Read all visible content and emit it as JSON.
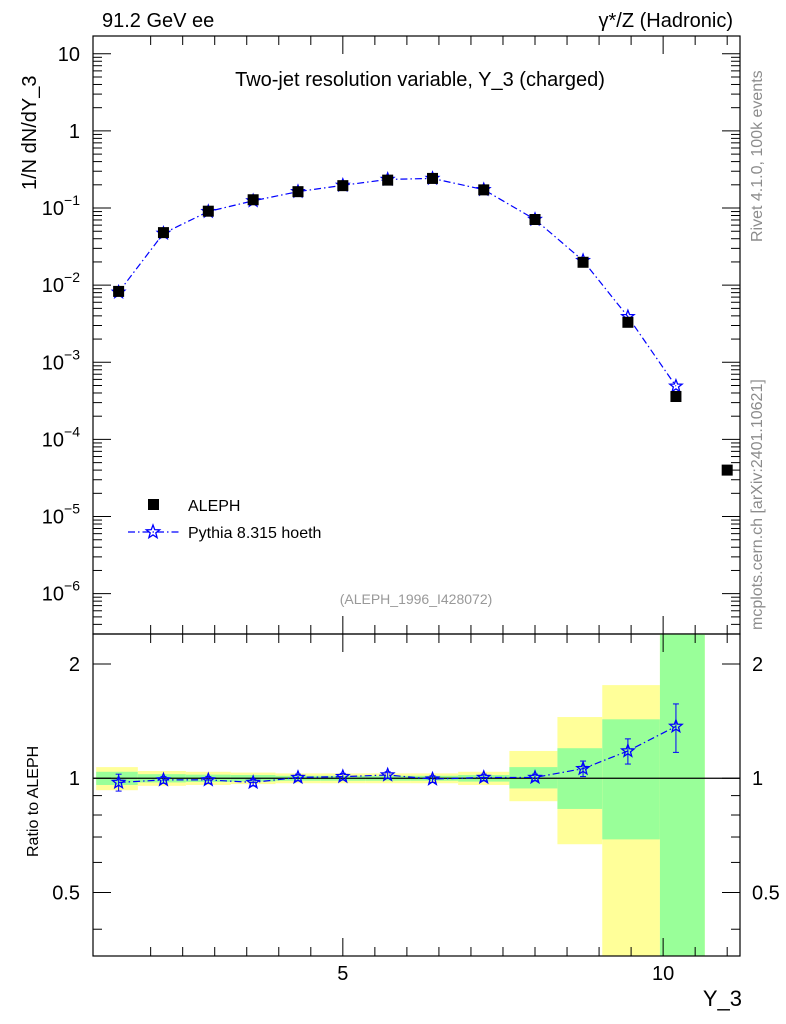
{
  "header": {
    "left": "91.2 GeV ee",
    "right": "γ*/Z (Hadronic)"
  },
  "side_labels": {
    "rivet": "Rivet 4.1.0,  100k events",
    "mcplots": "mcplots.cern.ch [arXiv:2401.10621]"
  },
  "colors": {
    "data": "#000000",
    "mc": "#0000ff",
    "band_green": "#99ff99",
    "band_yellow": "#ffff99",
    "analysis_label": "#999999"
  },
  "chart_data": [
    {
      "type": "scatter",
      "name": "main",
      "title": "Two-jet resolution variable, Y_3 (charged)",
      "analysis_id": "(ALEPH_1996_I428072)",
      "ylabel": "1/N  dN/dY_3",
      "xlabel": "Y_3",
      "yscale": "log",
      "xlim": [
        1.1,
        11.2
      ],
      "ylim": [
        3e-07,
        17
      ],
      "y_ticks": [
        {
          "value": 1e-06,
          "base": "10",
          "exp": "−6"
        },
        {
          "value": 1e-05,
          "base": "10",
          "exp": "−5"
        },
        {
          "value": 0.0001,
          "base": "10",
          "exp": "−4"
        },
        {
          "value": 0.001,
          "base": "10",
          "exp": "−3"
        },
        {
          "value": 0.01,
          "base": "10",
          "exp": "−2"
        },
        {
          "value": 0.1,
          "base": "10",
          "exp": "−1"
        },
        {
          "value": 1,
          "base": "1",
          "exp": ""
        },
        {
          "value": 10,
          "base": "10",
          "exp": ""
        }
      ],
      "legend": {
        "position": "bottom-left",
        "entries": [
          "ALEPH",
          "Pythia 8.315 hoeth"
        ]
      },
      "series": [
        {
          "name": "ALEPH",
          "style": "square-markers",
          "x": [
            1.5,
            2.2,
            2.9,
            3.6,
            4.3,
            5.0,
            5.7,
            6.4,
            7.2,
            8.0,
            8.75,
            9.45,
            10.2,
            11.0
          ],
          "y": [
            0.0083,
            0.048,
            0.091,
            0.128,
            0.163,
            0.195,
            0.23,
            0.242,
            0.172,
            0.071,
            0.0198,
            0.0033,
            0.00036,
            4e-05
          ]
        },
        {
          "name": "Pythia 8.315 hoeth",
          "style": "star-markers-dashdot-line",
          "x": [
            1.5,
            2.2,
            2.9,
            3.6,
            4.3,
            5.0,
            5.7,
            6.4,
            7.2,
            8.0,
            8.75,
            9.45,
            10.2
          ],
          "y": [
            0.0081,
            0.047,
            0.09,
            0.124,
            0.163,
            0.197,
            0.235,
            0.242,
            0.173,
            0.071,
            0.0208,
            0.0039,
            0.00049
          ]
        }
      ]
    },
    {
      "type": "line",
      "name": "ratio",
      "ylabel": "Ratio to ALEPH",
      "xlabel": "Y_3",
      "xlim": [
        1.1,
        11.2
      ],
      "ylim": [
        0.34,
        2.4
      ],
      "x_ticks": [
        5,
        10
      ],
      "y_ticks": [
        0.5,
        1,
        2
      ],
      "reference_line": 1,
      "bands": [
        {
          "x0": 1.15,
          "x1": 1.8,
          "yellow": [
            0.93,
            1.07
          ],
          "green": [
            0.96,
            1.04
          ]
        },
        {
          "x0": 1.8,
          "x1": 2.55,
          "yellow": [
            0.955,
            1.045
          ],
          "green": [
            0.975,
            1.025
          ]
        },
        {
          "x0": 2.55,
          "x1": 3.25,
          "yellow": [
            0.96,
            1.04
          ],
          "green": [
            0.978,
            1.022
          ]
        },
        {
          "x0": 3.25,
          "x1": 3.95,
          "yellow": [
            0.965,
            1.035
          ],
          "green": [
            0.98,
            1.02
          ]
        },
        {
          "x0": 3.95,
          "x1": 4.65,
          "yellow": [
            0.97,
            1.03
          ],
          "green": [
            0.985,
            1.015
          ]
        },
        {
          "x0": 4.65,
          "x1": 5.35,
          "yellow": [
            0.97,
            1.03
          ],
          "green": [
            0.985,
            1.015
          ]
        },
        {
          "x0": 5.35,
          "x1": 6.05,
          "yellow": [
            0.97,
            1.03
          ],
          "green": [
            0.985,
            1.015
          ]
        },
        {
          "x0": 6.05,
          "x1": 6.8,
          "yellow": [
            0.97,
            1.03
          ],
          "green": [
            0.985,
            1.015
          ]
        },
        {
          "x0": 6.8,
          "x1": 7.6,
          "yellow": [
            0.96,
            1.04
          ],
          "green": [
            0.98,
            1.02
          ]
        },
        {
          "x0": 7.6,
          "x1": 8.35,
          "yellow": [
            0.87,
            1.18
          ],
          "green": [
            0.94,
            1.07
          ]
        },
        {
          "x0": 8.35,
          "x1": 9.05,
          "yellow": [
            0.67,
            1.45
          ],
          "green": [
            0.83,
            1.2
          ]
        },
        {
          "x0": 9.05,
          "x1": 9.95,
          "yellow": [
            0.34,
            1.76
          ],
          "green": [
            0.69,
            1.43
          ]
        },
        {
          "x0": 9.95,
          "x1": 10.65,
          "yellow": [
            0.34,
            2.4
          ],
          "green": [
            0.34,
            2.4
          ]
        }
      ],
      "series": [
        {
          "name": "Pythia 8.315 hoeth / ALEPH",
          "x": [
            1.5,
            2.2,
            2.9,
            3.6,
            4.3,
            5.0,
            5.7,
            6.4,
            7.2,
            8.0,
            8.75,
            9.45,
            10.2
          ],
          "y": [
            0.975,
            0.99,
            0.99,
            0.975,
            1.005,
            1.01,
            1.02,
            0.995,
            1.005,
            1.005,
            1.06,
            1.18,
            1.37
          ],
          "err": [
            0.05,
            0.02,
            0.02,
            0.02,
            0.02,
            0.02,
            0.02,
            0.02,
            0.02,
            0.02,
            0.05,
            0.09,
            0.2
          ]
        }
      ]
    }
  ]
}
